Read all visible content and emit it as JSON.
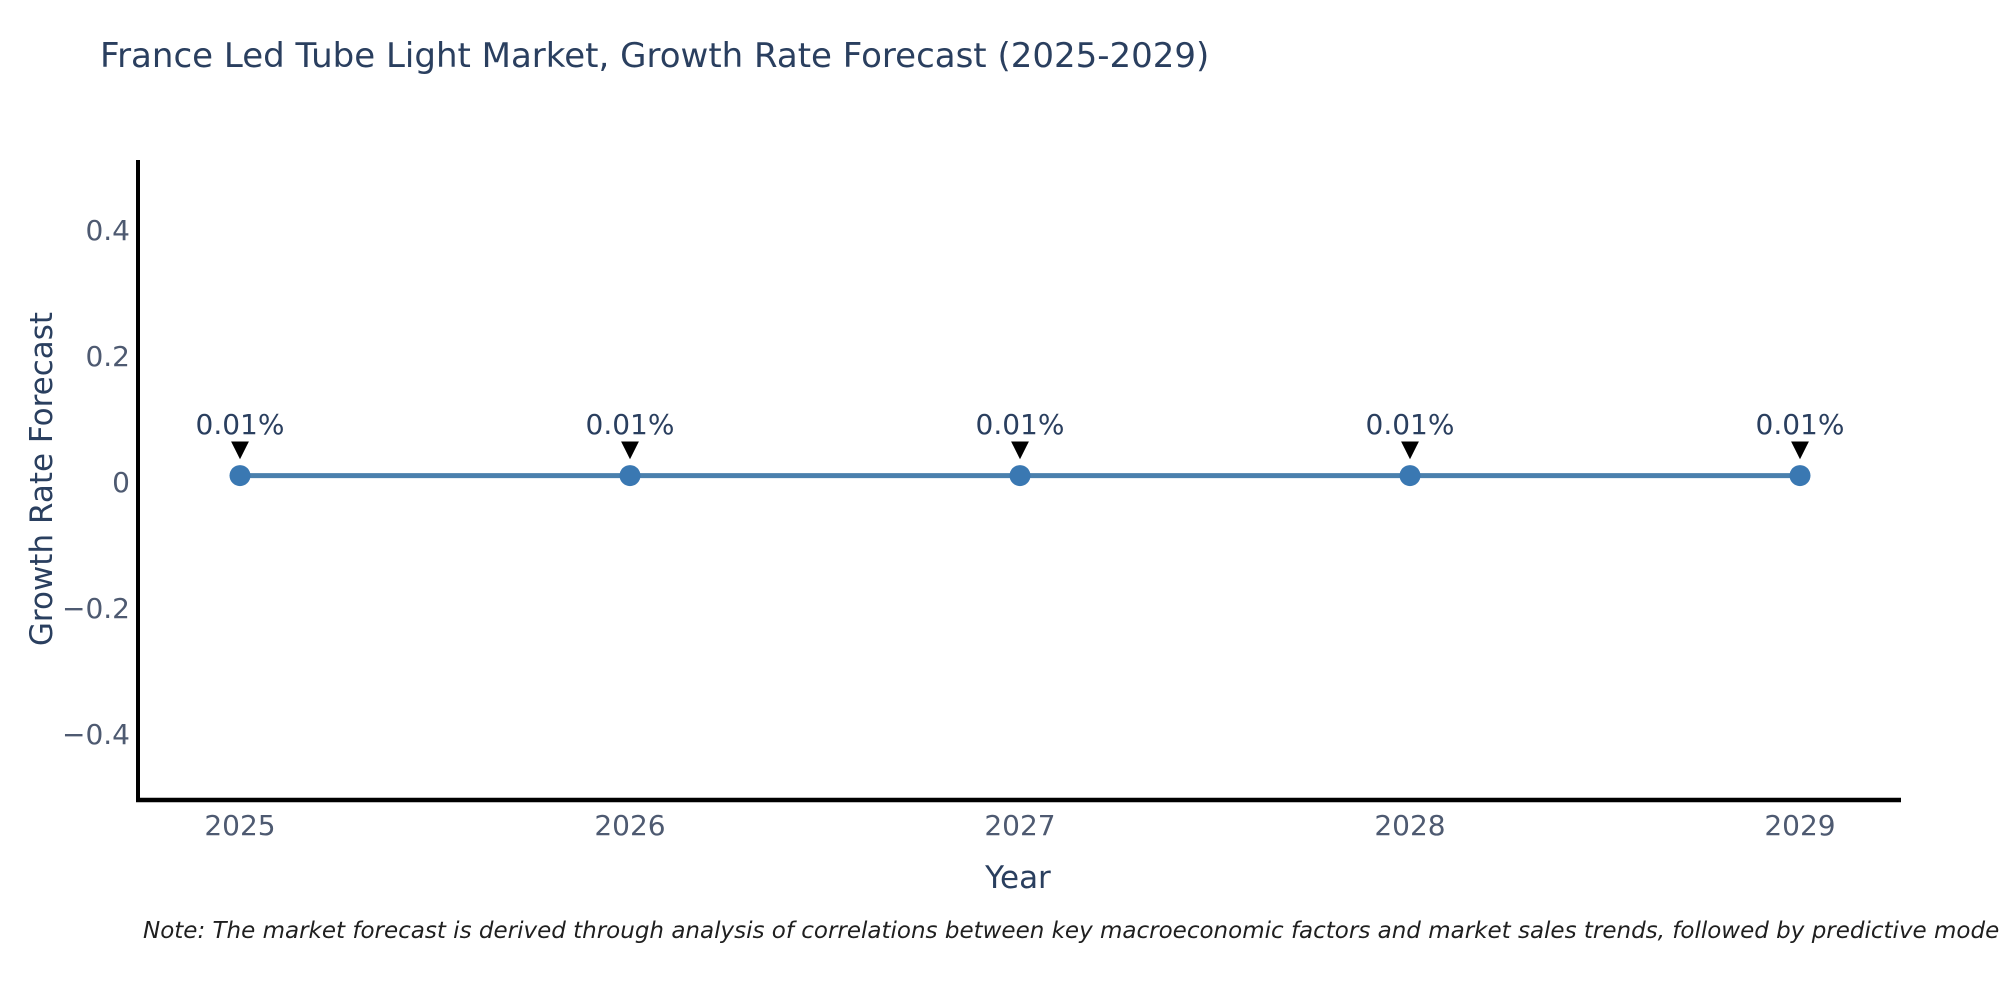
{
  "title": "France Led Tube Light Market, Growth Rate Forecast (2025-2029)",
  "note": "Note: The market forecast is derived through analysis of correlations between key macroeconomic factors and market sales trends, followed by predictive modeling to project future sa",
  "chart_data": {
    "type": "line",
    "title": "France Led Tube Light Market, Growth Rate Forecast (2025-2029)",
    "xlabel": "Year",
    "ylabel": "Growth Rate Forecast",
    "categories": [
      "2025",
      "2026",
      "2027",
      "2028",
      "2029"
    ],
    "series": [
      {
        "name": "Growth Rate Forecast",
        "values": [
          0.01,
          0.01,
          0.01,
          0.01,
          0.01
        ],
        "point_labels": [
          "0.01%",
          "0.01%",
          "0.01%",
          "0.01%",
          "0.01%"
        ]
      }
    ],
    "y_ticks": [
      {
        "label": "0.4",
        "value": 0.4
      },
      {
        "label": "0.2",
        "value": 0.2
      },
      {
        "label": "0",
        "value": 0
      },
      {
        "label": "−0.2",
        "value": -0.2
      },
      {
        "label": "−0.4",
        "value": -0.4
      }
    ],
    "ylim": [
      -0.505,
      0.511
    ],
    "grid": false,
    "legend_position": "none",
    "annotation_style": "value-label-with-down-arrow",
    "colors": {
      "line": "#4a80ad",
      "marker": "#3a78b2",
      "arrow": "#000000",
      "axis_line": "#000000",
      "title_text": "#2a3f5f",
      "tick_text": "#4e5a71",
      "annotation_text": "#2a3f5f",
      "note_text": "#1f1f1f",
      "background": "#ffffff"
    }
  }
}
